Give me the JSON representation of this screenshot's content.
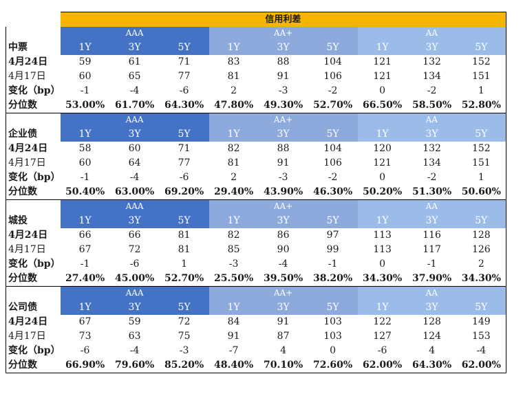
{
  "title": "信用利差",
  "grades": [
    "AAA",
    "AA+",
    "AA"
  ],
  "tenors": [
    "1Y",
    "3Y",
    "5Y",
    "1Y",
    "3Y",
    "5Y",
    "1Y",
    "3Y",
    "5Y"
  ],
  "row_labels": {
    "date1": "4月24日",
    "date2": "4月17日",
    "change": "变化（bp）",
    "percentile": "分位数"
  },
  "sections": [
    {
      "name": "中票",
      "date1": [
        "59",
        "61",
        "71",
        "83",
        "88",
        "104",
        "121",
        "132",
        "152"
      ],
      "date2": [
        "60",
        "65",
        "77",
        "81",
        "91",
        "106",
        "121",
        "134",
        "151"
      ],
      "change": [
        "-1",
        "-4",
        "-6",
        "2",
        "-3",
        "-2",
        "0",
        "-2",
        "1"
      ],
      "percentile": [
        "53.00%",
        "61.70%",
        "64.30%",
        "47.80%",
        "49.30%",
        "52.70%",
        "66.50%",
        "58.50%",
        "52.80%"
      ]
    },
    {
      "name": "企业债",
      "date1": [
        "58",
        "60",
        "71",
        "82",
        "88",
        "104",
        "120",
        "132",
        "152"
      ],
      "date2": [
        "60",
        "64",
        "77",
        "81",
        "91",
        "106",
        "121",
        "134",
        "151"
      ],
      "change": [
        "-1",
        "-4",
        "-6",
        "2",
        "-3",
        "-2",
        "0",
        "-2",
        "1"
      ],
      "percentile": [
        "50.40%",
        "63.00%",
        "69.20%",
        "29.40%",
        "43.90%",
        "46.30%",
        "50.20%",
        "51.30%",
        "50.60%"
      ]
    },
    {
      "name": "城投",
      "date1": [
        "66",
        "66",
        "81",
        "82",
        "86",
        "97",
        "113",
        "116",
        "128"
      ],
      "date2": [
        "67",
        "72",
        "81",
        "85",
        "90",
        "99",
        "113",
        "117",
        "126"
      ],
      "change": [
        "-1",
        "-6",
        "1",
        "-3",
        "-4",
        "-1",
        "0",
        "-1",
        "2"
      ],
      "percentile": [
        "27.40%",
        "45.00%",
        "52.70%",
        "25.50%",
        "39.50%",
        "38.20%",
        "34.30%",
        "37.90%",
        "34.30%"
      ]
    },
    {
      "name": "公司债",
      "date1": [
        "67",
        "59",
        "72",
        "84",
        "91",
        "103",
        "122",
        "128",
        "149"
      ],
      "date2": [
        "73",
        "63",
        "75",
        "91",
        "87",
        "103",
        "127",
        "124",
        "153"
      ],
      "change": [
        "-6",
        "-4",
        "-3",
        "-7",
        "4",
        "0",
        "-6",
        "4",
        "-4"
      ],
      "percentile": [
        "66.90%",
        "79.60%",
        "85.20%",
        "48.40%",
        "70.10%",
        "72.60%",
        "62.00%",
        "64.30%",
        "62.00%"
      ]
    }
  ],
  "colors": {
    "title_bg": "#f7b500",
    "aaa_bg": "#4472c4",
    "aa_plus_bg": "#8ea9db",
    "aa_bg": "#9bbbe8"
  }
}
